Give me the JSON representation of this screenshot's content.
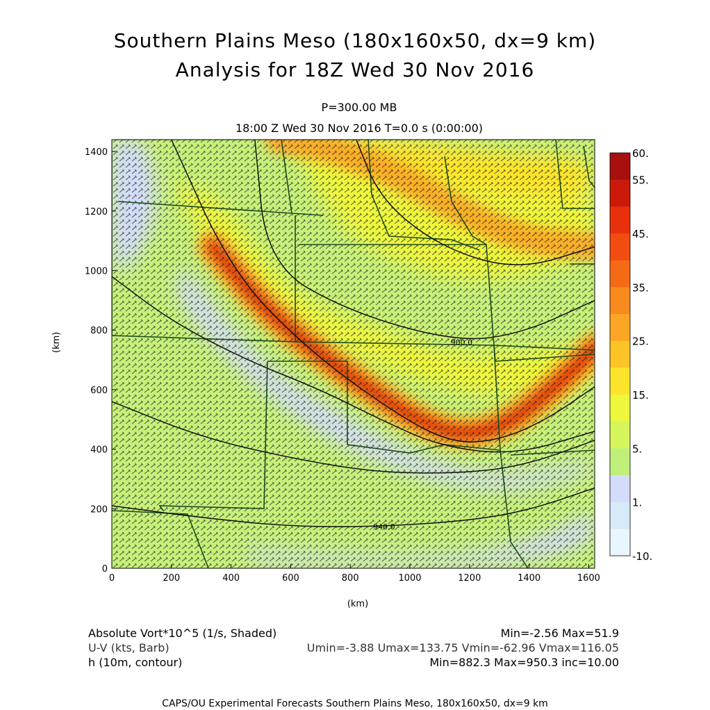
{
  "header": {
    "title_line1": "Southern Plains Meso (180x160x50, dx=9 km)",
    "title_line2": "Analysis for 18Z Wed 30 Nov 2016",
    "level": "P=300.00 MB",
    "time": "18:00 Z Wed 30 Nov 2016    T=0.0 s (0:00:00)"
  },
  "chart_data": {
    "type": "heatmap",
    "xlabel": "(km)",
    "ylabel": "(km)",
    "xlim": [
      0,
      1620
    ],
    "ylim": [
      0,
      1440
    ],
    "x_ticks": [
      "0",
      "200",
      "400",
      "600",
      "800",
      "1000",
      "1200",
      "1400",
      "1600"
    ],
    "y_ticks": [
      "0",
      "200",
      "400",
      "600",
      "800",
      "1000",
      "1200",
      "1400"
    ],
    "colorbar": {
      "levels": [
        "60.",
        "55.",
        "45.",
        "35.",
        "25.",
        "15.",
        "5.",
        "1.",
        "-10."
      ],
      "colors": [
        "#a80f0f",
        "#cc1a0a",
        "#e8310c",
        "#f34c10",
        "#f66a16",
        "#f88a1e",
        "#fba624",
        "#fcc426",
        "#fde42c",
        "#eef73c",
        "#d6f55c",
        "#c0f07a",
        "#d3dcfb",
        "#d6eaf8",
        "#e8f7fd"
      ]
    },
    "vorticity_band": {
      "description_points_km": [
        [
          340,
          1080
        ],
        [
          520,
          860
        ],
        [
          800,
          640
        ],
        [
          1100,
          450
        ],
        [
          1300,
          460
        ],
        [
          1500,
          620
        ],
        [
          1620,
          740
        ]
      ],
      "peak_value": 51.9
    },
    "height_contours": [
      {
        "label": "900.0",
        "points": [
          [
            480,
            1440
          ],
          [
            520,
            1020
          ],
          [
            800,
            860
          ],
          [
            1160,
            760
          ],
          [
            1380,
            790
          ],
          [
            1620,
            900
          ]
        ]
      },
      {
        "label": "",
        "points": [
          [
            200,
            1440
          ],
          [
            400,
            1000
          ],
          [
            650,
            740
          ],
          [
            950,
            520
          ],
          [
            1140,
            420
          ],
          [
            1300,
            430
          ],
          [
            1460,
            500
          ],
          [
            1620,
            610
          ]
        ]
      },
      {
        "label": "",
        "points": [
          [
            820,
            1440
          ],
          [
            900,
            1240
          ],
          [
            1100,
            1080
          ],
          [
            1360,
            1000
          ],
          [
            1620,
            1080
          ]
        ]
      },
      {
        "label": "",
        "points": [
          [
            0,
            980
          ],
          [
            200,
            830
          ],
          [
            450,
            700
          ],
          [
            700,
            600
          ],
          [
            900,
            500
          ],
          [
            1100,
            410
          ],
          [
            1350,
            380
          ],
          [
            1620,
            460
          ]
        ]
      },
      {
        "label": "",
        "points": [
          [
            0,
            560
          ],
          [
            300,
            440
          ],
          [
            600,
            370
          ],
          [
            900,
            320
          ],
          [
            1200,
            320
          ],
          [
            1400,
            350
          ],
          [
            1620,
            430
          ]
        ]
      },
      {
        "label": "940.0",
        "points": [
          [
            0,
            210
          ],
          [
            300,
            170
          ],
          [
            600,
            140
          ],
          [
            900,
            140
          ],
          [
            1200,
            160
          ],
          [
            1400,
            195
          ],
          [
            1620,
            270
          ]
        ]
      }
    ],
    "stats": {
      "vort_min": -2.56,
      "vort_max": 51.9,
      "umin": -3.88,
      "umax": 133.75,
      "vmin": -62.96,
      "vmax": 116.05,
      "h_min": 882.3,
      "h_max": 950.3,
      "h_inc": 10.0
    }
  },
  "legend": {
    "line1_left": "Absolute Vort*10^5 (1/s, Shaded)",
    "line1_right": "Min=-2.56 Max=51.9",
    "line2_left": "U-V (kts, Barb)",
    "line2_right": "Umin=-3.88 Umax=133.75 Vmin=-62.96 Vmax=116.05",
    "line3_left": "h (10m, contour)",
    "line3_right": "Min=882.3 Max=950.3 inc=10.00"
  },
  "footer": "CAPS/OU Experimental Forecasts  Southern Plains Meso, 180x160x50, dx=9 km"
}
